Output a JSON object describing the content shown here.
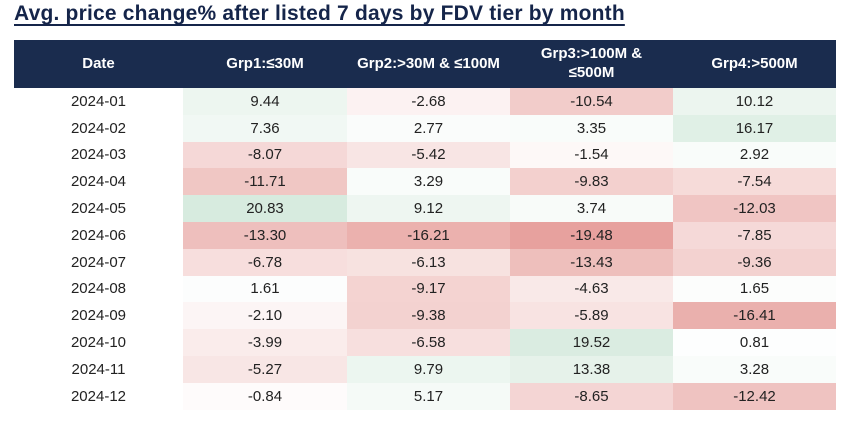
{
  "page": {
    "title": "Avg. price change% after listed 7 days by FDV tier by month"
  },
  "colors": {
    "header_bg": "#1a2c4e",
    "header_text": "#ffffff",
    "title_text": "#15254a",
    "cell_text": "#222222",
    "max_positive_cell": "#d7ebdf",
    "max_negative_cell": "#e7a29e",
    "neutral_cell": "#ffffff"
  },
  "chart_data": {
    "type": "heatmap",
    "title": "Avg. price change% after listed 7 days by FDV tier by month",
    "row_header": "Date",
    "categories": [
      "2024-01",
      "2024-02",
      "2024-03",
      "2024-04",
      "2024-05",
      "2024-06",
      "2024-07",
      "2024-08",
      "2024-09",
      "2024-10",
      "2024-11",
      "2024-12"
    ],
    "series": [
      {
        "name": "Grp1:≤30M",
        "values": [
          9.44,
          7.36,
          -8.07,
          -11.71,
          20.83,
          -13.3,
          -6.78,
          1.61,
          -2.1,
          -3.99,
          -5.27,
          -0.84
        ]
      },
      {
        "name": "Grp2:>30M & ≤100M",
        "values": [
          -2.68,
          2.77,
          -5.42,
          3.29,
          9.12,
          -16.21,
          -6.13,
          -9.17,
          -9.38,
          -6.58,
          9.79,
          5.17
        ]
      },
      {
        "name": "Grp3:>100M & ≤500M",
        "values": [
          -10.54,
          3.35,
          -1.54,
          -9.83,
          3.74,
          -19.48,
          -13.43,
          -4.63,
          -5.89,
          19.52,
          13.38,
          -8.65
        ]
      },
      {
        "name": "Grp4:>500M",
        "values": [
          10.12,
          16.17,
          2.92,
          -7.54,
          -12.03,
          -7.85,
          -9.36,
          1.65,
          -16.41,
          0.81,
          3.28,
          -12.42
        ]
      }
    ],
    "value_format": "two_decimals",
    "color_scale": {
      "midpoint": 0,
      "positive_tint": "green",
      "negative_tint": "red"
    }
  }
}
